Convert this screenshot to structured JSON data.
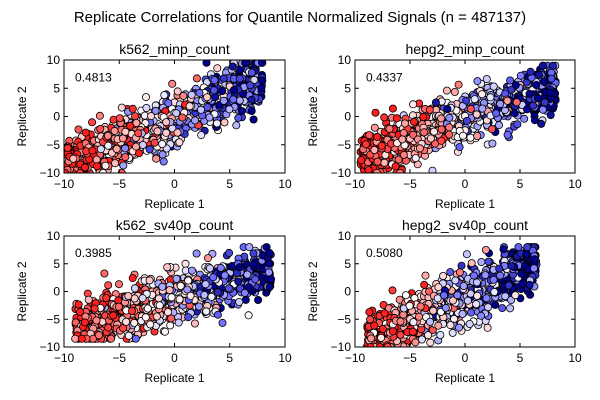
{
  "suptitle": "Replicate Correlations for Quantile Normalized Signals (n = 487137)",
  "chart_data": [
    {
      "type": "scatter",
      "title": "k562_minp_count",
      "xlabel": "Replicate 1",
      "ylabel": "Replicate 2",
      "xlim": [
        -10,
        10
      ],
      "ylim": [
        -10,
        10
      ],
      "xticks": [
        "−10",
        "−5",
        "0",
        "5",
        "10"
      ],
      "yticks": [
        "10",
        "5",
        "0",
        "−5",
        "−10"
      ],
      "xtick_values": [
        -10,
        -5,
        0,
        5,
        10
      ],
      "ytick_values": [
        10,
        5,
        0,
        -5,
        -10
      ],
      "annotation": "0.4813",
      "n_points": 487137,
      "colormap": "bwr_r",
      "cloud": {
        "x_range": [
          -10,
          9
        ],
        "y_range": [
          -10,
          9.5
        ],
        "slope": 0.85,
        "center": [
          -1.5,
          -1.5
        ]
      }
    },
    {
      "type": "scatter",
      "title": "hepg2_minp_count",
      "xlabel": "Replicate 1",
      "ylabel": "Replicate 2",
      "xlim": [
        -10,
        10
      ],
      "ylim": [
        -10,
        10
      ],
      "xticks": [
        "−10",
        "−5",
        "0",
        "5",
        "10"
      ],
      "yticks": [
        "10",
        "5",
        "0",
        "−5",
        "−10"
      ],
      "xtick_values": [
        -10,
        -5,
        0,
        5,
        10
      ],
      "ytick_values": [
        10,
        5,
        0,
        -5,
        -10
      ],
      "annotation": "0.4337",
      "n_points": 487137,
      "colormap": "bwr_r",
      "cloud": {
        "x_range": [
          -9.5,
          9
        ],
        "y_range": [
          -10,
          9
        ],
        "slope": 0.7,
        "center": [
          -1,
          -1
        ]
      }
    },
    {
      "type": "scatter",
      "title": "k562_sv40p_count",
      "xlabel": "Replicate 1",
      "ylabel": "Replicate 2",
      "xlim": [
        -10,
        10
      ],
      "ylim": [
        -10,
        10
      ],
      "xticks": [
        "−10",
        "−5",
        "0",
        "5",
        "10"
      ],
      "yticks": [
        "10",
        "5",
        "0",
        "−5",
        "−10"
      ],
      "xtick_values": [
        -10,
        -5,
        0,
        5,
        10
      ],
      "ytick_values": [
        10,
        5,
        0,
        -5,
        -10
      ],
      "annotation": "0.3985",
      "n_points": 487137,
      "colormap": "bwr_r",
      "cloud": {
        "x_range": [
          -9,
          9.5
        ],
        "y_range": [
          -8.5,
          8
        ],
        "slope": 0.6,
        "center": [
          -0.5,
          -1.5
        ]
      }
    },
    {
      "type": "scatter",
      "title": "hepg2_sv40p_count",
      "xlabel": "Replicate 1",
      "ylabel": "Replicate 2",
      "xlim": [
        -10,
        10
      ],
      "ylim": [
        -10,
        10
      ],
      "xticks": [
        "−10",
        "−5",
        "0",
        "5",
        "10"
      ],
      "yticks": [
        "10",
        "5",
        "0",
        "−5",
        "−10"
      ],
      "xtick_values": [
        -10,
        -5,
        0,
        5,
        10
      ],
      "ytick_values": [
        10,
        5,
        0,
        -5,
        -10
      ],
      "annotation": "0.5080",
      "n_points": 487137,
      "colormap": "bwr_r",
      "cloud": {
        "x_range": [
          -9.5,
          6.5
        ],
        "y_range": [
          -10,
          8
        ],
        "slope": 0.85,
        "center": [
          -1,
          -1.5
        ]
      }
    }
  ]
}
